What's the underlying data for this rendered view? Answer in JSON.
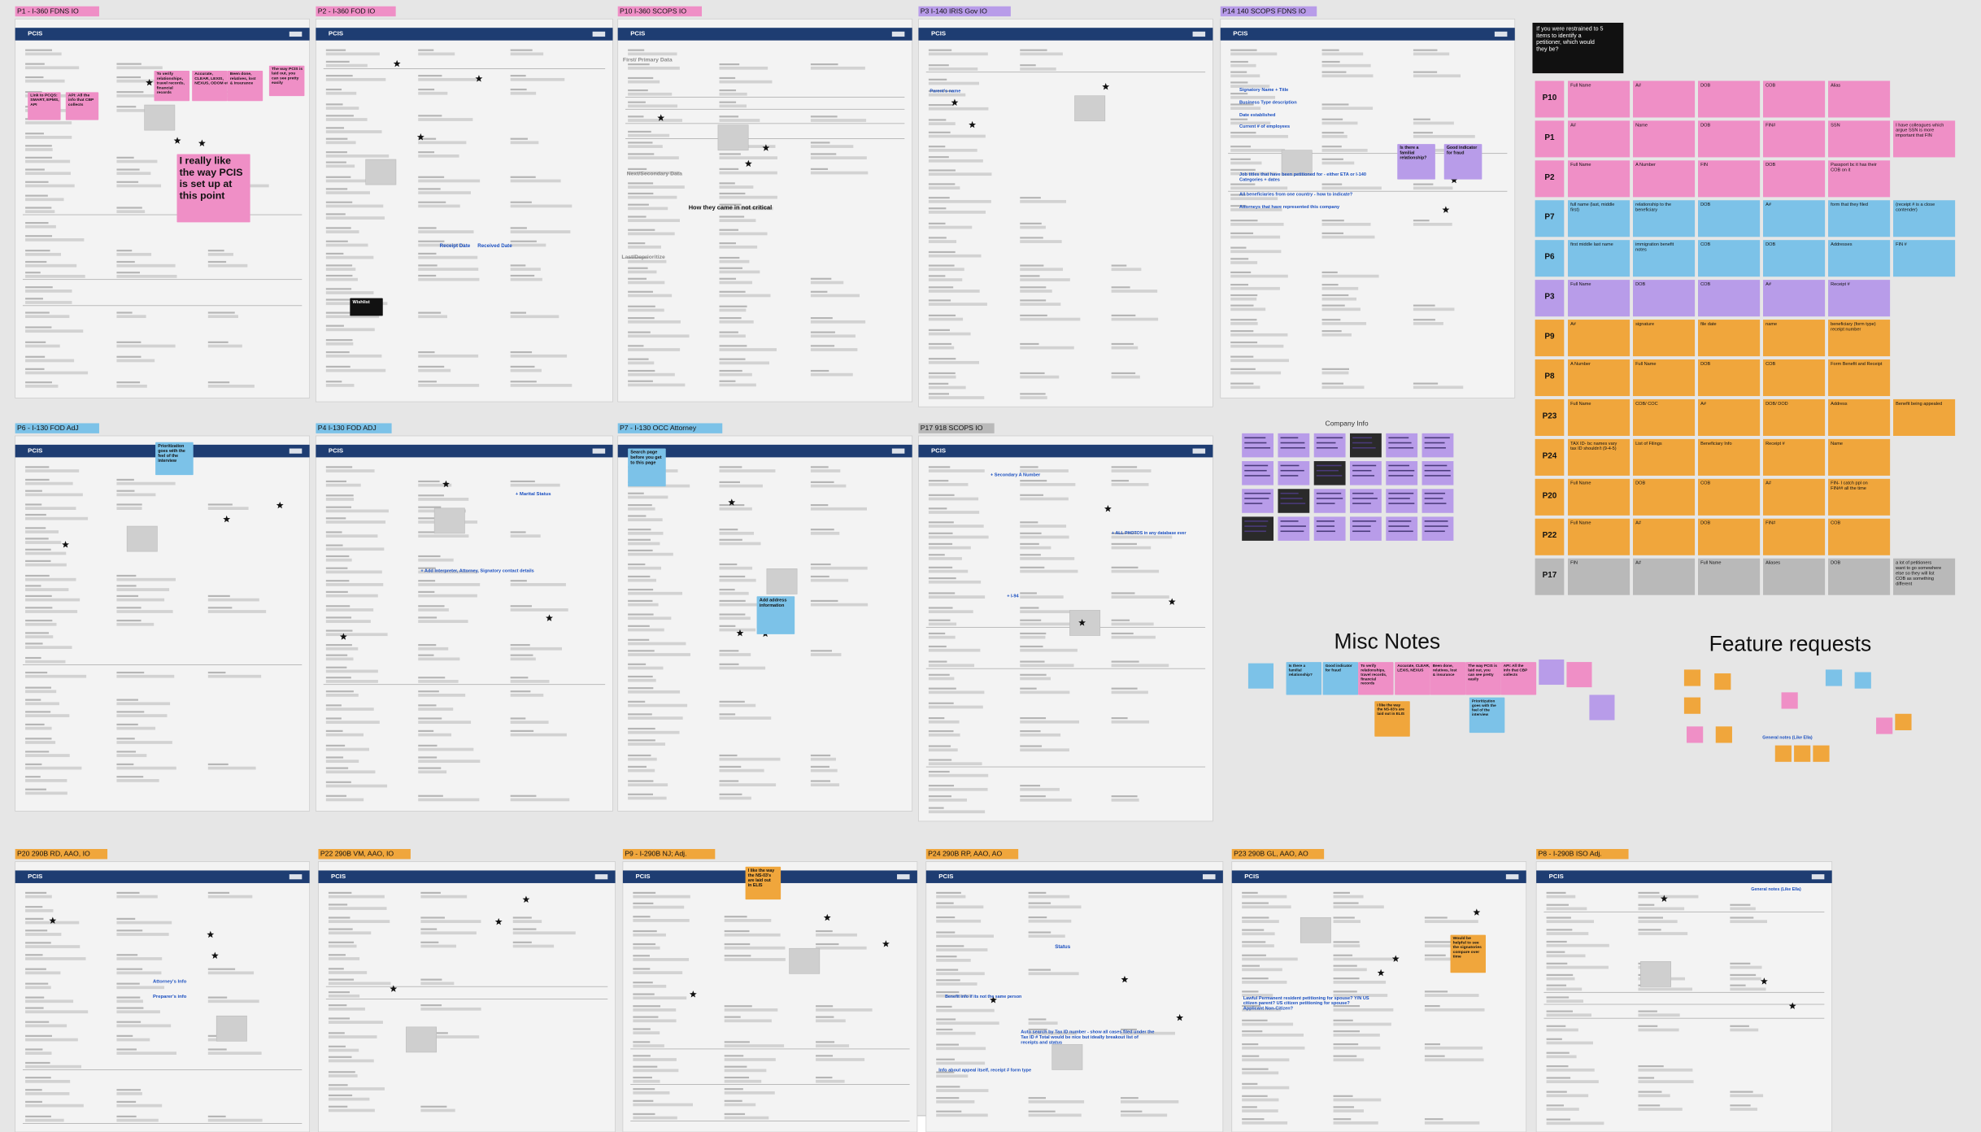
{
  "app_name": "PCIS",
  "frames": [
    {
      "label": "P1 - I-360 FDNS IO",
      "color": "#ef8fc6",
      "notes": [
        "Link to PCQS: SMART, EPMS, API",
        "API: All the info that CBP collects",
        "To verify relationships, travel records, financial records",
        "Accurate, CLEAR, LEXIS, NEXUS, ODOM etc",
        "Been done, relatives, lost & insurance",
        "The way PCIS is laid out, you can see pretty easily",
        "I really like the way PCIS is set up at this point"
      ]
    },
    {
      "label": "P2 - I-360 FOD IO",
      "color": "#ef8fc6",
      "notes": [
        "Receipt Date",
        "Received Date",
        "Wishlist"
      ]
    },
    {
      "label": "P10 I-360 SCOPS IO",
      "color": "#ef8fc6",
      "notes": [
        "First/ Primary Data",
        "Next/Secondary Data",
        "Last/Deprioritize",
        "How they came in not critical"
      ]
    },
    {
      "label": "P3 I-140 IRIS Gov IO",
      "color": "#b89ce9",
      "notes": [
        "Parent's name"
      ]
    },
    {
      "label": "P14 140 SCOPS FDNS IO",
      "color": "#b89ce9",
      "notes": [
        "Signatory Name + Title",
        "Business Type description",
        "Date established",
        "Current # of employees",
        "Job titles that have been petitioned for - either ETA or I-140 Categories + dates",
        "All beneficiaries from one country - how to indicate?",
        "Attorneys that have represented this company",
        "Is there a familial relationship?",
        "Good indicator for fraud"
      ]
    },
    {
      "label": "P6 - I-130 FOD AdJ",
      "color": "#7cc2e8",
      "notes": [
        "Prioritization goes with the feel of the interview"
      ]
    },
    {
      "label": "P4 I-130 FOD ADJ",
      "color": "#7cc2e8",
      "notes": [
        "+ Marital Status",
        "+ Add Interpreter, Attorney, Signatory contact details"
      ]
    },
    {
      "label": "P7 - I-130 OCC Attorney",
      "color": "#7cc2e8",
      "notes": [
        "Search page before you get to this page",
        "Add address information"
      ]
    },
    {
      "label": "P17 918 SCOPS IO",
      "color": "#b9b9b9",
      "notes": [
        "+ Secondary A Number",
        "+ ALL PHOTOS in any database ever",
        "+ I-94"
      ]
    },
    {
      "label": "P20 290B RD, AAO, IO",
      "color": "#f0a63c",
      "notes": [
        "Attorney's Info",
        "Preparer's info"
      ]
    },
    {
      "label": "P22 290B VM, AAO, IO",
      "color": "#f0a63c",
      "notes": []
    },
    {
      "label": "P9 - I-290B NJ; Adj.",
      "color": "#f0a63c",
      "notes": [
        "I like the way the NS-03's are laid out in ELIS"
      ]
    },
    {
      "label": "P24 290B RP, AAO, AO",
      "color": "#f0a63c",
      "notes": [
        "Status",
        "Benefit info if its not the same person",
        "Auto search by Tax ID number - show all cases filed under the Tax ID # Total would be nice but ideally breakout list of receipts and status",
        "Info about appeal itself, receipt # form type"
      ]
    },
    {
      "label": "P23 290B GL, AAO, AO",
      "color": "#f0a63c",
      "notes": [
        "Lawful Permanent resident petitioning for spouse? Y/N US citizen parent? US citizen petitioning for spouse? Applicant Non-Citizen?",
        "Would be helpful to see the signatories compare over time"
      ]
    },
    {
      "label": "P8 - I-290B ISO Adj.",
      "color": "#f0a63c",
      "notes": [
        "General notes (Like Ella)"
      ]
    }
  ],
  "company_info": {
    "title": "Company Info"
  },
  "misc_notes": {
    "title": "Misc Notes",
    "notes": [
      "Is there a familial relationship?",
      "Good indicator for fraud",
      "To verify relationships, travel records, financial records",
      "Accurate, CLEAR, LEXIS, NEXUS",
      "Been done, relatives, lost & insurance",
      "The way PCIS is laid out, you can see pretty easily",
      "API: All the info that CBP collects",
      "I like the way the NS-03's are laid out in ELIS",
      "Prioritization goes with the feel of the interview"
    ]
  },
  "feature_requests": {
    "title": "Feature requests",
    "notes": [
      "General notes (Like Ella)"
    ]
  },
  "survey": {
    "question": "If you were restrained to 5 items to identify a petitioner, which would they be?",
    "rows": [
      {
        "label": "P10",
        "color": "#ef8fc6",
        "cells": [
          "Full Name",
          "A#",
          "DOB",
          "COB",
          "Alias"
        ]
      },
      {
        "label": "P1",
        "color": "#ef8fc6",
        "cells": [
          "A#",
          "Name",
          "DOB",
          "FIN#",
          "SSN",
          "I have colleagues which argue SSN is more important that FIN"
        ]
      },
      {
        "label": "P2",
        "color": "#ef8fc6",
        "cells": [
          "Full Name",
          "A Number",
          "FIN",
          "DOB",
          "Passport bc it has their COB on it"
        ]
      },
      {
        "label": "P7",
        "color": "#7cc2e8",
        "cells": [
          "full name (last, middle first)",
          "relationship to the beneficiary",
          "DOB",
          "A#",
          "form that they filed",
          "(receipt # is a close contender)"
        ]
      },
      {
        "label": "P6",
        "color": "#7cc2e8",
        "cells": [
          "first middle last name",
          "immigration benefit notes",
          "COB",
          "DOB",
          "Addresses",
          "FIN #"
        ]
      },
      {
        "label": "P3",
        "color": "#b89ce9",
        "cells": [
          "Full Name",
          "DOB",
          "COB",
          "A#",
          "Receipt #"
        ]
      },
      {
        "label": "P9",
        "color": "#f0a63c",
        "cells": [
          "A#",
          "signature",
          "file date",
          "name",
          "beneficiary (form type) receipt number"
        ]
      },
      {
        "label": "P8",
        "color": "#f0a63c",
        "cells": [
          "A Number",
          "Full Name",
          "DOB",
          "COB",
          "Form Benefit and Receipt"
        ]
      },
      {
        "label": "P23",
        "color": "#f0a63c",
        "cells": [
          "Full Name",
          "COB/ COC",
          "A#",
          "DOB/ DOD",
          "Address",
          "Benefit being appealed"
        ]
      },
      {
        "label": "P24",
        "color": "#f0a63c",
        "cells": [
          "TAX ID- bc names vary tax ID shouldn't (9-4-5)",
          "List of Filings",
          "Beneficiary Info",
          "Receipt #",
          "Name"
        ]
      },
      {
        "label": "P20",
        "color": "#f0a63c",
        "cells": [
          "Full Name",
          "DOB",
          "COB",
          "A#",
          "FIN- I catch ppl on FIN## all the time"
        ]
      },
      {
        "label": "P22",
        "color": "#f0a63c",
        "cells": [
          "Full Name",
          "A#",
          "DOB",
          "FIN#",
          "COB"
        ]
      },
      {
        "label": "P17",
        "color": "#b9b9b9",
        "cells": [
          "FIN",
          "A#",
          "Full Name",
          "Aliases",
          "DOB",
          "a lot of petitioners want to go somewhere else so they will list COB as something different"
        ]
      }
    ]
  }
}
